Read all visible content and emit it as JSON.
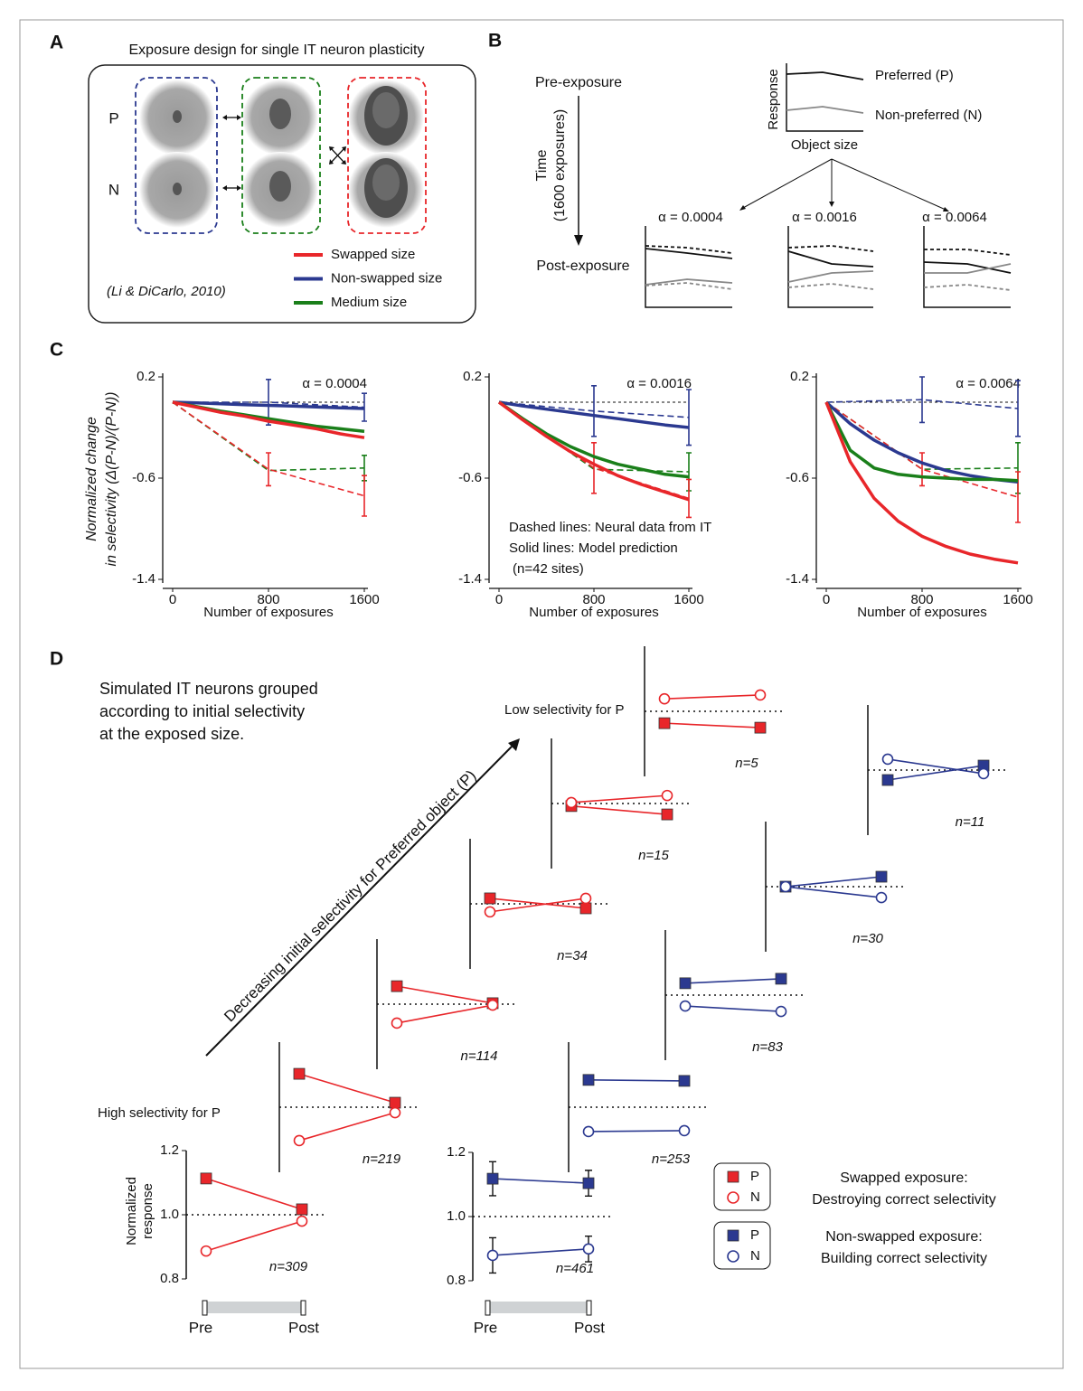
{
  "panel_labels": [
    "A",
    "B",
    "C",
    "D"
  ],
  "panel_a": {
    "title": "Exposure design for single IT neuron plasticity",
    "rows": [
      "P",
      "N"
    ],
    "legend": [
      {
        "name": "Swapped size",
        "color": "#e8262a"
      },
      {
        "name": "Non-swapped size",
        "color": "#2b3990"
      },
      {
        "name": "Medium size",
        "color": "#1a7f1a"
      }
    ],
    "citation": "(Li & DiCarlo, 2010)"
  },
  "panel_b": {
    "pre": "Pre-exposure",
    "post": "Post-exposure",
    "time": "Time",
    "time_note": "(1600 exposures)",
    "y_label": "Response",
    "x_label": "Object size",
    "preferred": "Preferred (P)",
    "non_preferred": "Non-preferred (N)",
    "alphas": [
      "α = 0.0004",
      "α = 0.0016",
      "α = 0.0064"
    ]
  },
  "chart_data": [
    {
      "type": "line",
      "annotation": "α = 0.0004",
      "x_label": "Number of exposures",
      "y_label": [
        "Normalized change",
        "in selectivity (Δ(P-N)/(P-N))"
      ],
      "xlim": [
        0,
        1600
      ],
      "xticks": [
        0,
        800,
        1600
      ],
      "ylim": [
        -1.4,
        0.2
      ],
      "yticks": [
        0.2,
        -0.6,
        -1.4
      ],
      "series": [
        {
          "color": "#2b3990",
          "style": "dashed",
          "x": [
            0,
            800,
            1600
          ],
          "values": [
            0,
            0.0,
            -0.04
          ],
          "errors": [
            null,
            0.18,
            0.11
          ]
        },
        {
          "color": "#1a7f1a",
          "style": "dashed",
          "x": [
            0,
            800,
            1600
          ],
          "values": [
            0,
            -0.54,
            -0.52
          ],
          "errors": [
            null,
            null,
            0.1
          ]
        },
        {
          "color": "#e8262a",
          "style": "dashed",
          "x": [
            0,
            800,
            1600
          ],
          "values": [
            0,
            -0.53,
            -0.74
          ],
          "errors": [
            null,
            0.13,
            0.16
          ]
        },
        {
          "color": "#2b3990",
          "style": "solid",
          "x": [
            0,
            200,
            400,
            600,
            800,
            1000,
            1200,
            1400,
            1600
          ],
          "values": [
            0,
            -0.006,
            -0.012,
            -0.019,
            -0.025,
            -0.031,
            -0.037,
            -0.044,
            -0.05
          ]
        },
        {
          "color": "#1a7f1a",
          "style": "solid",
          "x": [
            0,
            200,
            400,
            600,
            800,
            1000,
            1200,
            1400,
            1600
          ],
          "values": [
            0,
            -0.035,
            -0.07,
            -0.1,
            -0.13,
            -0.16,
            -0.19,
            -0.21,
            -0.23
          ]
        },
        {
          "color": "#e8262a",
          "style": "solid",
          "x": [
            0,
            200,
            400,
            600,
            800,
            1000,
            1200,
            1400,
            1600
          ],
          "values": [
            0,
            -0.04,
            -0.08,
            -0.11,
            -0.15,
            -0.18,
            -0.21,
            -0.25,
            -0.28
          ]
        }
      ]
    },
    {
      "type": "line",
      "annotation": "α = 0.0016",
      "x_label": "Number of exposures",
      "notes": [
        "Dashed lines: Neural data from IT",
        "Solid lines: Model prediction",
        "(n=42 sites)"
      ],
      "xlim": [
        0,
        1600
      ],
      "xticks": [
        0,
        800,
        1600
      ],
      "ylim": [
        -1.4,
        0.2
      ],
      "yticks": [
        0.2,
        -0.6,
        -1.4
      ],
      "series": [
        {
          "color": "#2b3990",
          "style": "dashed",
          "x": [
            0,
            800,
            1600
          ],
          "values": [
            0,
            -0.07,
            -0.12
          ],
          "errors": [
            null,
            0.2,
            0.22
          ]
        },
        {
          "color": "#1a7f1a",
          "style": "dashed",
          "x": [
            0,
            800,
            1600
          ],
          "values": [
            0,
            -0.53,
            -0.55
          ],
          "errors": [
            null,
            null,
            0.15
          ]
        },
        {
          "color": "#e8262a",
          "style": "dashed",
          "x": [
            0,
            800,
            1600
          ],
          "values": [
            0,
            -0.52,
            -0.76
          ],
          "errors": [
            null,
            0.2,
            0.15
          ]
        },
        {
          "color": "#2b3990",
          "style": "solid",
          "x": [
            0,
            200,
            400,
            600,
            800,
            1000,
            1200,
            1400,
            1600
          ],
          "values": [
            0,
            -0.03,
            -0.055,
            -0.08,
            -0.105,
            -0.13,
            -0.155,
            -0.18,
            -0.2
          ]
        },
        {
          "color": "#1a7f1a",
          "style": "solid",
          "x": [
            0,
            200,
            400,
            600,
            800,
            1000,
            1200,
            1400,
            1600
          ],
          "values": [
            0,
            -0.13,
            -0.25,
            -0.35,
            -0.43,
            -0.49,
            -0.53,
            -0.57,
            -0.59
          ]
        },
        {
          "color": "#e8262a",
          "style": "solid",
          "x": [
            0,
            200,
            400,
            600,
            800,
            1000,
            1200,
            1400,
            1600
          ],
          "values": [
            0,
            -0.14,
            -0.27,
            -0.39,
            -0.49,
            -0.58,
            -0.65,
            -0.71,
            -0.77
          ]
        }
      ]
    },
    {
      "type": "line",
      "annotation": "α = 0.0064",
      "x_label": "Number of exposures",
      "xlim": [
        0,
        1600
      ],
      "xticks": [
        0,
        800,
        1600
      ],
      "ylim": [
        -1.4,
        0.2
      ],
      "yticks": [
        0.2,
        -0.6,
        -1.4
      ],
      "series": [
        {
          "color": "#2b3990",
          "style": "dashed",
          "x": [
            0,
            800,
            1600
          ],
          "values": [
            0,
            0.02,
            -0.05
          ],
          "errors": [
            null,
            0.18,
            0.22
          ]
        },
        {
          "color": "#1a7f1a",
          "style": "dashed",
          "x": [
            0,
            800,
            1600
          ],
          "values": [
            0,
            -0.53,
            -0.52
          ],
          "errors": [
            null,
            null,
            0.2
          ]
        },
        {
          "color": "#e8262a",
          "style": "dashed",
          "x": [
            0,
            800,
            1600
          ],
          "values": [
            0,
            -0.53,
            -0.75
          ],
          "errors": [
            null,
            0.13,
            0.2
          ]
        },
        {
          "color": "#2b3990",
          "style": "solid",
          "x": [
            0,
            200,
            400,
            600,
            800,
            1000,
            1200,
            1400,
            1600
          ],
          "values": [
            0,
            -0.17,
            -0.3,
            -0.4,
            -0.48,
            -0.54,
            -0.58,
            -0.61,
            -0.63
          ]
        },
        {
          "color": "#1a7f1a",
          "style": "solid",
          "x": [
            0,
            200,
            400,
            600,
            800,
            1000,
            1200,
            1400,
            1600
          ],
          "values": [
            0,
            -0.38,
            -0.52,
            -0.57,
            -0.59,
            -0.6,
            -0.61,
            -0.61,
            -0.62
          ]
        },
        {
          "color": "#e8262a",
          "style": "solid",
          "x": [
            0,
            200,
            400,
            600,
            800,
            1000,
            1200,
            1400,
            1600
          ],
          "values": [
            0,
            -0.47,
            -0.76,
            -0.94,
            -1.06,
            -1.14,
            -1.2,
            -1.24,
            -1.27
          ]
        }
      ]
    }
  ],
  "panel_d": {
    "description": [
      "Simulated IT neurons grouped",
      "according to initial selectivity",
      "at the exposed size."
    ],
    "arrow_label": "Decreasing initial selectivity for Preferred object (P)",
    "low_label": "Low selectivity for P",
    "high_label": "High selectivity for P",
    "y_label": [
      "Normalized",
      "response"
    ],
    "ylim": [
      0.8,
      1.2
    ],
    "yticks": [
      1.2,
      {
        "value": 1,
        "label": "1.0"
      },
      0.8
    ],
    "x_labels": [
      "Pre",
      "Post"
    ],
    "marker_labels": [
      "P",
      "N"
    ],
    "conditions": [
      {
        "color": "#e8262a",
        "title": [
          "Swapped exposure:",
          "Destroying correct selectivity"
        ],
        "groups": [
          {
            "n_label": "n=309",
            "axis": true,
            "P": [
              1.113,
              1.017
            ],
            "N": [
              0.887,
              0.98
            ]
          },
          {
            "n_label": "n=219",
            "P": [
              1.104,
              1.014
            ],
            "N": [
              0.896,
              0.983
            ]
          },
          {
            "n_label": "n=114",
            "P": [
              1.056,
              1.003
            ],
            "N": [
              0.941,
              0.997
            ]
          },
          {
            "n_label": "n=34",
            "P": [
              1.017,
              0.986
            ],
            "N": [
              0.975,
              1.017
            ]
          },
          {
            "n_label": "n=15",
            "P": [
              0.992,
              0.966
            ],
            "N": [
              1.003,
              1.025
            ]
          },
          {
            "n_label": "n=5",
            "P": [
              0.963,
              0.949
            ],
            "N": [
              1.039,
              1.051
            ]
          }
        ]
      },
      {
        "color": "#2b3990",
        "title": [
          "Non-swapped exposure:",
          "Building correct selectivity"
        ],
        "groups": [
          {
            "n_label": "n=461",
            "axis": true,
            "P": [
              1.118,
              1.104
            ],
            "N": [
              0.879,
              0.899
            ],
            "P_err": [
              0.053,
              0.04
            ],
            "N_err": [
              0.055,
              0.04
            ]
          },
          {
            "n_label": "n=253",
            "P": [
              1.085,
              1.082
            ],
            "N": [
              0.924,
              0.927
            ]
          },
          {
            "n_label": "n=83",
            "P": [
              1.037,
              1.051
            ],
            "N": [
              0.966,
              0.949
            ]
          },
          {
            "n_label": "n=30",
            "P": [
              1.0,
              1.031
            ],
            "N": [
              1.0,
              0.966
            ]
          },
          {
            "n_label": "n=11",
            "P": [
              0.969,
              1.014
            ],
            "N": [
              1.034,
              0.989
            ]
          }
        ]
      }
    ]
  }
}
